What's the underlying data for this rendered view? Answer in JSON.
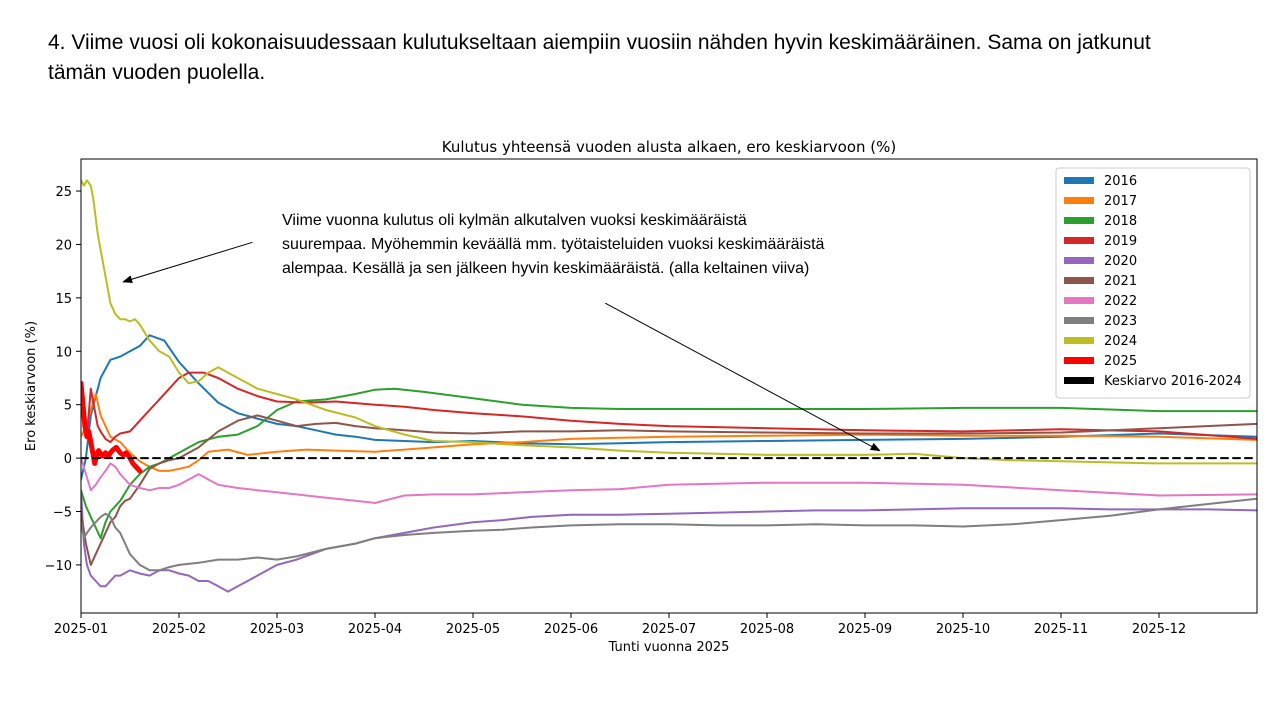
{
  "slide": {
    "title_line1": "4. Viime vuosi oli kokonaisuudessaan kulutukseltaan aiempiin vuosiin nähden hyvin keskimääräinen. Sama on jatkunut",
    "title_line2": "tämän vuoden puolella."
  },
  "annotation": {
    "line1": "Viime vuonna kulutus oli kylmän alkutalven vuoksi keskimääräistä",
    "line2": "suurempaa. Myöhemmin keväällä mm. työtaisteluiden vuoksi keskimääräistä",
    "line3": "alempaa. Kesällä ja sen jälkeen hyvin keskimääräistä. (alla keltainen viiva)"
  },
  "chart_data": {
    "type": "line",
    "title": "Kulutus yhteensä vuoden alusta alkaen, ero keskiarvoon (%)",
    "xlabel": "Tunti vuonna 2025",
    "ylabel": "Ero keskiarvoon (%)",
    "x_unit": "month of 2025",
    "xlim": [
      1,
      13
    ],
    "ylim": [
      -14.5,
      28
    ],
    "x_ticks": [
      {
        "x": 1,
        "label": "2025-01"
      },
      {
        "x": 2,
        "label": "2025-02"
      },
      {
        "x": 3,
        "label": "2025-03"
      },
      {
        "x": 4,
        "label": "2025-04"
      },
      {
        "x": 5,
        "label": "2025-05"
      },
      {
        "x": 6,
        "label": "2025-06"
      },
      {
        "x": 7,
        "label": "2025-07"
      },
      {
        "x": 8,
        "label": "2025-08"
      },
      {
        "x": 9,
        "label": "2025-09"
      },
      {
        "x": 10,
        "label": "2025-10"
      },
      {
        "x": 11,
        "label": "2025-11"
      },
      {
        "x": 12,
        "label": "2025-12"
      }
    ],
    "y_ticks": [
      {
        "y": -10,
        "label": "−10"
      },
      {
        "y": -5,
        "label": "−5"
      },
      {
        "y": 0,
        "label": "0"
      },
      {
        "y": 5,
        "label": "5"
      },
      {
        "y": 10,
        "label": "10"
      },
      {
        "y": 15,
        "label": "15"
      },
      {
        "y": 20,
        "label": "20"
      },
      {
        "y": 25,
        "label": "25"
      }
    ],
    "grid": false,
    "legend_position": "top-right",
    "series": [
      {
        "name": "2016",
        "color": "#1f77b4",
        "width": 2,
        "x": [
          1,
          1.05,
          1.1,
          1.2,
          1.3,
          1.4,
          1.5,
          1.6,
          1.7,
          1.85,
          2,
          2.2,
          2.4,
          2.6,
          2.8,
          3,
          3.2,
          3.4,
          3.6,
          3.8,
          4,
          4.3,
          4.6,
          5,
          5.5,
          6,
          6.5,
          7,
          8,
          9,
          10,
          11,
          12,
          13
        ],
        "y": [
          -2,
          0,
          4,
          7.5,
          9.2,
          9.5,
          10,
          10.5,
          11.5,
          11,
          9,
          7,
          5.2,
          4.2,
          3.7,
          3.2,
          3,
          2.6,
          2.2,
          2,
          1.7,
          1.6,
          1.5,
          1.6,
          1.4,
          1.3,
          1.4,
          1.5,
          1.6,
          1.7,
          1.8,
          2,
          2.3,
          2
        ]
      },
      {
        "name": "2017",
        "color": "#ff7f0e",
        "width": 2,
        "x": [
          1,
          1.05,
          1.1,
          1.15,
          1.2,
          1.3,
          1.4,
          1.5,
          1.6,
          1.7,
          1.8,
          1.9,
          2,
          2.1,
          2.2,
          2.3,
          2.5,
          2.7,
          2.9,
          3,
          3.3,
          3.6,
          4,
          4.3,
          4.6,
          5,
          5.5,
          6,
          6.5,
          7,
          8,
          9,
          10,
          11,
          12,
          13
        ],
        "y": [
          2,
          3,
          4.5,
          6,
          4,
          2,
          1.5,
          0.5,
          -0.3,
          -0.8,
          -1.2,
          -1.2,
          -1,
          -0.8,
          -0.2,
          0.6,
          0.8,
          0.3,
          0.5,
          0.6,
          0.8,
          0.7,
          0.6,
          0.8,
          1,
          1.3,
          1.5,
          1.8,
          1.9,
          2,
          2.1,
          2.2,
          2.1,
          2.1,
          2,
          1.7
        ]
      },
      {
        "name": "2018",
        "color": "#2ca02c",
        "width": 2,
        "x": [
          1,
          1.05,
          1.1,
          1.15,
          1.2,
          1.25,
          1.3,
          1.35,
          1.4,
          1.5,
          1.6,
          1.7,
          1.8,
          1.9,
          2,
          2.2,
          2.4,
          2.6,
          2.8,
          3,
          3.2,
          3.5,
          3.8,
          4,
          4.2,
          4.5,
          5,
          5.5,
          6,
          6.5,
          7,
          8,
          9,
          10,
          11,
          12,
          13
        ],
        "y": [
          -3,
          -4.5,
          -5.5,
          -6.5,
          -7.5,
          -6,
          -5,
          -4.5,
          -4,
          -2.5,
          -1.5,
          -0.8,
          -0.5,
          0,
          0.5,
          1.5,
          2,
          2.2,
          3,
          4.5,
          5.3,
          5.5,
          6,
          6.4,
          6.5,
          6.2,
          5.6,
          5,
          4.7,
          4.6,
          4.6,
          4.6,
          4.6,
          4.7,
          4.7,
          4.4,
          4.4
        ]
      },
      {
        "name": "2019",
        "color": "#d62728",
        "width": 2,
        "x": [
          1,
          1.03,
          1.06,
          1.1,
          1.13,
          1.17,
          1.2,
          1.25,
          1.3,
          1.35,
          1.4,
          1.5,
          1.6,
          1.7,
          1.8,
          1.9,
          2,
          2.1,
          2.25,
          2.4,
          2.6,
          2.8,
          3,
          3.3,
          3.6,
          4,
          4.3,
          4.6,
          5,
          5.5,
          6,
          6.5,
          7,
          8,
          9,
          10,
          11,
          12,
          13
        ],
        "y": [
          6,
          4,
          2,
          6.5,
          5,
          3,
          2.5,
          1.8,
          1.5,
          2,
          2.3,
          2.5,
          3.5,
          4.5,
          5.5,
          6.5,
          7.5,
          8,
          8,
          7.5,
          6.5,
          5.8,
          5.3,
          5.2,
          5.3,
          5,
          4.8,
          4.5,
          4.2,
          3.9,
          3.5,
          3.2,
          3,
          2.8,
          2.6,
          2.5,
          2.7,
          2.5,
          1.8
        ]
      },
      {
        "name": "2020",
        "color": "#9467bd",
        "width": 2,
        "x": [
          1,
          1.03,
          1.06,
          1.1,
          1.15,
          1.2,
          1.25,
          1.3,
          1.35,
          1.4,
          1.5,
          1.6,
          1.7,
          1.8,
          1.9,
          2,
          2.1,
          2.2,
          2.3,
          2.4,
          2.5,
          2.6,
          2.7,
          2.8,
          2.9,
          3,
          3.2,
          3.5,
          3.8,
          4,
          4.3,
          4.6,
          5,
          5.3,
          5.6,
          6,
          6.5,
          7,
          7.5,
          8,
          8.5,
          9,
          9.5,
          10,
          10.5,
          11,
          11.5,
          12,
          12.5,
          13
        ],
        "y": [
          -3,
          -8,
          -10,
          -11,
          -11.5,
          -12,
          -12,
          -11.5,
          -11,
          -11,
          -10.5,
          -10.8,
          -11,
          -10.5,
          -10.5,
          -10.8,
          -11,
          -11.5,
          -11.5,
          -12,
          -12.5,
          -12,
          -11.5,
          -11,
          -10.5,
          -10,
          -9.5,
          -8.5,
          -8,
          -7.5,
          -7,
          -6.5,
          -6,
          -5.8,
          -5.5,
          -5.3,
          -5.3,
          -5.2,
          -5.1,
          -5,
          -4.9,
          -4.9,
          -4.8,
          -4.7,
          -4.7,
          -4.7,
          -4.8,
          -4.8,
          -4.8,
          -4.9
        ]
      },
      {
        "name": "2021",
        "color": "#8c564b",
        "width": 2,
        "x": [
          1,
          1.05,
          1.1,
          1.15,
          1.2,
          1.25,
          1.3,
          1.35,
          1.4,
          1.45,
          1.5,
          1.6,
          1.7,
          1.8,
          1.9,
          2,
          2.2,
          2.4,
          2.6,
          2.8,
          3,
          3.2,
          3.4,
          3.6,
          3.8,
          4,
          4.3,
          4.6,
          5,
          5.5,
          6,
          6.5,
          7,
          8,
          9,
          10,
          11,
          12,
          13
        ],
        "y": [
          -5,
          -8,
          -10,
          -9,
          -8,
          -7,
          -6,
          -5.5,
          -4.5,
          -4,
          -3.8,
          -2.5,
          -1,
          -0.5,
          -0.2,
          0,
          1,
          2.5,
          3.5,
          4,
          3.5,
          3,
          3.2,
          3.3,
          3,
          2.8,
          2.6,
          2.4,
          2.3,
          2.5,
          2.5,
          2.6,
          2.5,
          2.4,
          2.3,
          2.3,
          2.4,
          2.8,
          3.2
        ]
      },
      {
        "name": "2022",
        "color": "#e377c2",
        "width": 2,
        "x": [
          1,
          1.05,
          1.1,
          1.15,
          1.2,
          1.25,
          1.3,
          1.35,
          1.4,
          1.5,
          1.6,
          1.7,
          1.8,
          1.9,
          2,
          2.1,
          2.2,
          2.3,
          2.4,
          2.6,
          2.8,
          3,
          3.3,
          3.6,
          3.8,
          4,
          4.3,
          4.6,
          5,
          5.5,
          6,
          6.5,
          7,
          8,
          9,
          10,
          11,
          12,
          13
        ],
        "y": [
          0,
          -1.5,
          -3,
          -2.5,
          -1.8,
          -1.2,
          -0.5,
          -0.8,
          -1.5,
          -2.5,
          -2.8,
          -3,
          -2.8,
          -2.8,
          -2.5,
          -2,
          -1.5,
          -2,
          -2.5,
          -2.8,
          -3,
          -3.2,
          -3.5,
          -3.8,
          -4,
          -4.2,
          -3.5,
          -3.4,
          -3.4,
          -3.2,
          -3,
          -2.9,
          -2.5,
          -2.3,
          -2.3,
          -2.5,
          -3,
          -3.5,
          -3.4
        ]
      },
      {
        "name": "2023",
        "color": "#7f7f7f",
        "width": 2,
        "x": [
          1,
          1.03,
          1.06,
          1.1,
          1.15,
          1.2,
          1.25,
          1.3,
          1.35,
          1.4,
          1.45,
          1.5,
          1.6,
          1.7,
          1.8,
          1.9,
          2,
          2.2,
          2.4,
          2.6,
          2.8,
          3,
          3.2,
          3.5,
          3.8,
          4,
          4.3,
          4.6,
          5,
          5.3,
          5.6,
          6,
          6.5,
          7,
          7.5,
          8,
          8.5,
          9,
          9.5,
          10,
          10.5,
          11,
          11.5,
          12,
          12.5,
          13
        ],
        "y": [
          -6,
          -7.5,
          -7,
          -6.5,
          -6,
          -5.5,
          -5.2,
          -5.5,
          -6.5,
          -7,
          -8,
          -9,
          -10,
          -10.5,
          -10.5,
          -10.2,
          -10,
          -9.8,
          -9.5,
          -9.5,
          -9.3,
          -9.5,
          -9.2,
          -8.5,
          -8,
          -7.5,
          -7.2,
          -7,
          -6.8,
          -6.7,
          -6.5,
          -6.3,
          -6.2,
          -6.2,
          -6.3,
          -6.3,
          -6.2,
          -6.3,
          -6.3,
          -6.4,
          -6.2,
          -5.8,
          -5.4,
          -4.8,
          -4.3,
          -3.8
        ]
      },
      {
        "name": "2024",
        "color": "#bcbd22",
        "width": 2,
        "x": [
          1,
          1.03,
          1.06,
          1.1,
          1.13,
          1.17,
          1.2,
          1.25,
          1.3,
          1.35,
          1.4,
          1.45,
          1.5,
          1.55,
          1.6,
          1.7,
          1.8,
          1.9,
          2,
          2.1,
          2.2,
          2.3,
          2.4,
          2.5,
          2.6,
          2.7,
          2.8,
          3,
          3.2,
          3.5,
          3.8,
          4,
          4.3,
          4.6,
          5,
          5.5,
          6,
          6.5,
          7,
          7.5,
          8,
          8.5,
          9,
          9.5,
          10,
          10.5,
          11,
          11.5,
          12,
          12.5,
          13
        ],
        "y": [
          26,
          25.5,
          26,
          25.5,
          24,
          21,
          19.5,
          17,
          14.5,
          13.5,
          13,
          13,
          12.8,
          13,
          12.5,
          11,
          10,
          9.5,
          8,
          7,
          7.2,
          8,
          8.5,
          8,
          7.5,
          7,
          6.5,
          6,
          5.5,
          4.5,
          3.8,
          3,
          2.2,
          1.6,
          1.5,
          1.2,
          1,
          0.7,
          0.5,
          0.4,
          0.3,
          0.3,
          0.3,
          0.4,
          0,
          -0.2,
          -0.3,
          -0.4,
          -0.5,
          -0.5,
          -0.5
        ]
      },
      {
        "name": "2025",
        "color": "#ff0000",
        "width": 5,
        "x": [
          1,
          1.02,
          1.04,
          1.06,
          1.08,
          1.1,
          1.12,
          1.14,
          1.16,
          1.18,
          1.2,
          1.22,
          1.25,
          1.28,
          1.3,
          1.33,
          1.36,
          1.4,
          1.43,
          1.46,
          1.5,
          1.53,
          1.56,
          1.6
        ],
        "y": [
          7,
          5,
          3,
          2,
          2.5,
          1.5,
          0.5,
          -0.5,
          0.3,
          0.7,
          0.4,
          0.2,
          0.5,
          0.2,
          0.5,
          0.8,
          1,
          0.5,
          0.3,
          0.5,
          0,
          -0.5,
          -0.8,
          -1.2
        ]
      },
      {
        "name": "Keskiarvo 2016-2024",
        "color": "#000000",
        "width": 2,
        "dashed": true,
        "x": [
          1,
          13
        ],
        "y": [
          0,
          0
        ]
      }
    ],
    "annotations": [
      {
        "kind": "arrow",
        "from": [
          2.75,
          20.2
        ],
        "to": [
          1.43,
          16.5
        ]
      },
      {
        "kind": "arrow",
        "from": [
          6.35,
          14.5
        ],
        "to": [
          9.15,
          0.7
        ]
      }
    ]
  }
}
